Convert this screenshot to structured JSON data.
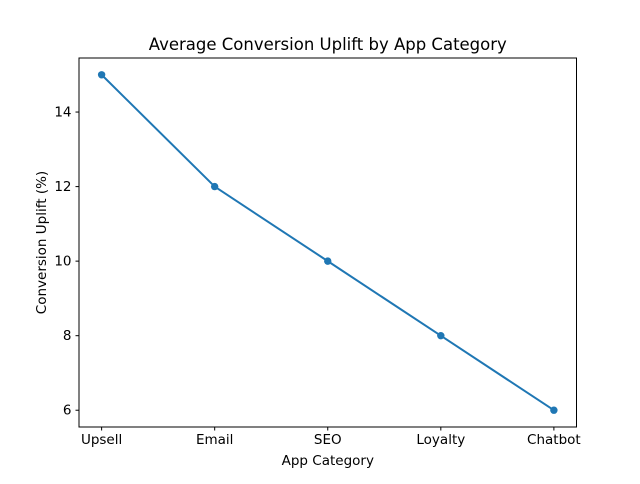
{
  "chart_data": {
    "type": "line",
    "title": "Average Conversion Uplift by App Category",
    "xlabel": "App Category",
    "ylabel": "Conversion Uplift (%)",
    "categories": [
      "Upsell",
      "Email",
      "SEO",
      "Loyalty",
      "Chatbot"
    ],
    "series": [
      {
        "name": "Conversion Uplift",
        "values": [
          15,
          12,
          10,
          8,
          6
        ]
      }
    ],
    "yticks": [
      6,
      8,
      10,
      12,
      14
    ],
    "ylim": [
      5.55,
      15.45
    ],
    "x_margin": 0.2,
    "grid": false,
    "legend_position": "none",
    "line_color": "#1f77b4",
    "marker": "circle",
    "axis_color": "#000000",
    "background_color": "#ffffff"
  }
}
